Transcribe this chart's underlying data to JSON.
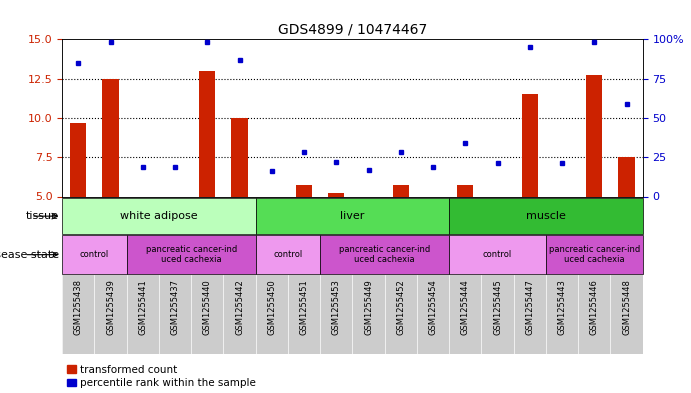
{
  "title": "GDS4899 / 10474467",
  "samples": [
    "GSM1255438",
    "GSM1255439",
    "GSM1255441",
    "GSM1255437",
    "GSM1255440",
    "GSM1255442",
    "GSM1255450",
    "GSM1255451",
    "GSM1255453",
    "GSM1255449",
    "GSM1255452",
    "GSM1255454",
    "GSM1255444",
    "GSM1255445",
    "GSM1255447",
    "GSM1255443",
    "GSM1255446",
    "GSM1255448"
  ],
  "red_values": [
    9.7,
    12.5,
    5.0,
    5.0,
    13.0,
    10.0,
    5.0,
    5.7,
    5.2,
    5.0,
    5.7,
    5.0,
    5.7,
    5.0,
    11.5,
    5.0,
    12.7,
    7.5
  ],
  "blue_pct": [
    85,
    98,
    19,
    19,
    98,
    87,
    16,
    28,
    22,
    17,
    28,
    19,
    34,
    21,
    95,
    21,
    98,
    59
  ],
  "ylim_left": [
    5,
    15
  ],
  "ylim_right": [
    0,
    100
  ],
  "yticks_left": [
    5,
    7.5,
    10,
    12.5,
    15
  ],
  "yticks_right": [
    0,
    25,
    50,
    75,
    100
  ],
  "dotted_lines": [
    7.5,
    10,
    12.5
  ],
  "tissue_groups": [
    {
      "label": "white adipose",
      "start": 0,
      "end": 6,
      "color": "#bbffbb"
    },
    {
      "label": "liver",
      "start": 6,
      "end": 12,
      "color": "#55dd55"
    },
    {
      "label": "muscle",
      "start": 12,
      "end": 18,
      "color": "#33bb33"
    }
  ],
  "disease_groups": [
    {
      "label": "control",
      "start": 0,
      "end": 2,
      "color": "#ee99ee"
    },
    {
      "label": "pancreatic cancer-ind\nuced cachexia",
      "start": 2,
      "end": 6,
      "color": "#cc55cc"
    },
    {
      "label": "control",
      "start": 6,
      "end": 8,
      "color": "#ee99ee"
    },
    {
      "label": "pancreatic cancer-ind\nuced cachexia",
      "start": 8,
      "end": 12,
      "color": "#cc55cc"
    },
    {
      "label": "control",
      "start": 12,
      "end": 15,
      "color": "#ee99ee"
    },
    {
      "label": "pancreatic cancer-ind\nuced cachexia",
      "start": 15,
      "end": 18,
      "color": "#cc55cc"
    }
  ],
  "bar_color": "#cc2200",
  "dot_color": "#0000cc",
  "bar_bottom": 5,
  "sample_bg_color": "#cccccc",
  "legend_red": "transformed count",
  "legend_blue": "percentile rank within the sample",
  "left_tick_color": "#cc2200",
  "right_tick_color": "#0000cc"
}
